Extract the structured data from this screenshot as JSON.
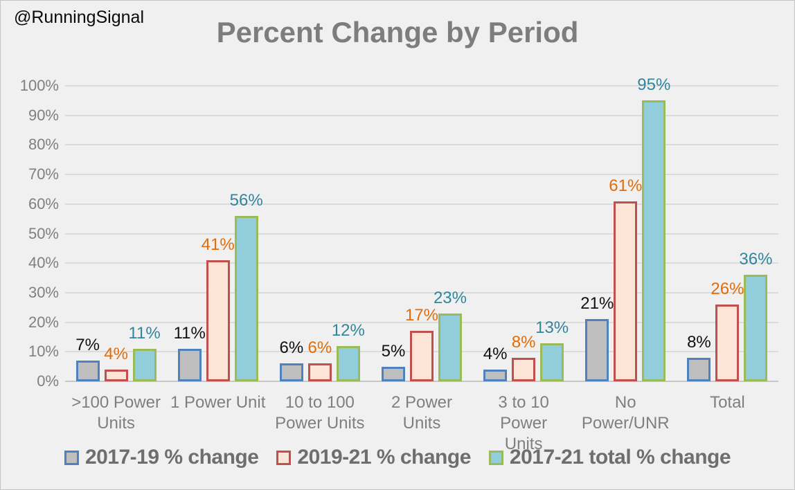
{
  "watermark": "@RunningSignal",
  "chart_data": {
    "type": "bar",
    "title": "Percent Change by Period",
    "categories": [
      ">100 Power Units",
      "1 Power Unit",
      "10 to 100 Power Units",
      "2 Power Units",
      "3 to 10 Power Units",
      "No Power/UNR",
      "Total"
    ],
    "category_lines": [
      [
        ">100 Power",
        "Units"
      ],
      [
        "1 Power Unit"
      ],
      [
        "10 to 100",
        "Power Units"
      ],
      [
        "2 Power Units"
      ],
      [
        "3 to 10 Power",
        "Units"
      ],
      [
        "No",
        "Power/UNR"
      ],
      [
        "Total"
      ]
    ],
    "series": [
      {
        "name": "2017-19 % change",
        "values": [
          7,
          11,
          6,
          5,
          4,
          21,
          8
        ],
        "labels": [
          "7%",
          "11%",
          "6%",
          "5%",
          "4%",
          "21%",
          "8%"
        ],
        "fill": "#bfbfbf",
        "border": "#4f81bd",
        "label_color": "#111111"
      },
      {
        "name": "2019-21 % change",
        "values": [
          4,
          41,
          6,
          17,
          8,
          61,
          26
        ],
        "labels": [
          "4%",
          "41%",
          "6%",
          "17%",
          "8%",
          "61%",
          "26%"
        ],
        "fill": "#fce4d6",
        "border": "#c0504d",
        "label_color": "#e36c09"
      },
      {
        "name": "2017-21 total % change",
        "values": [
          11,
          56,
          12,
          23,
          13,
          95,
          36
        ],
        "labels": [
          "11%",
          "56%",
          "12%",
          "23%",
          "13%",
          "95%",
          "36%"
        ],
        "fill": "#92cddc",
        "border": "#9bbb59",
        "label_color": "#31859c"
      }
    ],
    "xlabel": "",
    "ylabel": "",
    "ylim": [
      0,
      100
    ],
    "ytick_step": 10,
    "yticks": [
      "0%",
      "10%",
      "20%",
      "30%",
      "40%",
      "50%",
      "60%",
      "70%",
      "80%",
      "90%",
      "100%"
    ],
    "grid": true,
    "legend_position": "bottom",
    "background": "#f0f0f0",
    "gridline_color": "#dbdbdb",
    "axis_text_color": "#7f7f7f",
    "title_color": "#7d7d7d"
  }
}
